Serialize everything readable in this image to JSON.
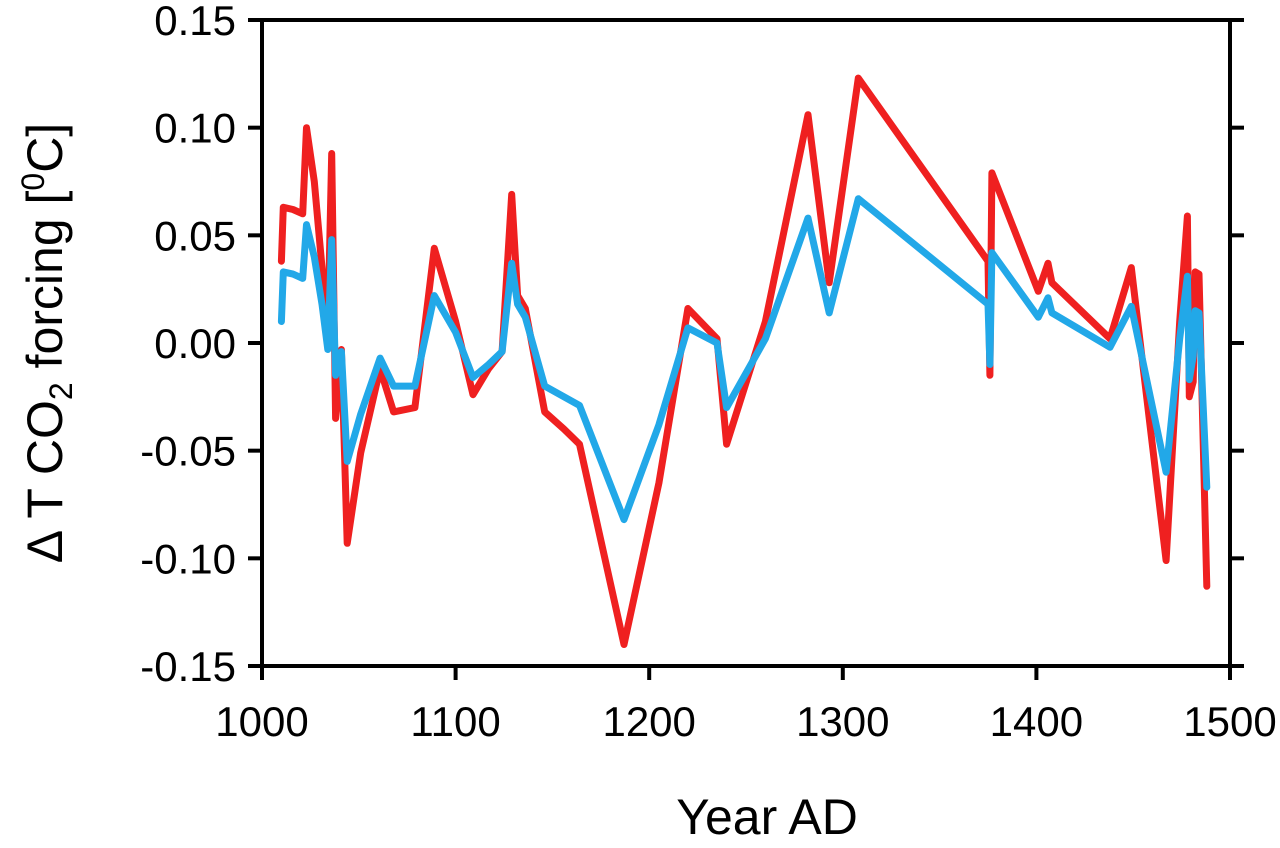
{
  "chart_data": {
    "type": "line",
    "xlabel": "Year AD",
    "ylabel_parts": {
      "pre": "Δ T CO",
      "sub": "2",
      "mid": " forcing [",
      "sup": "0",
      "post": "C]"
    },
    "xlim": [
      1000,
      1500
    ],
    "ylim": [
      -0.15,
      0.15
    ],
    "x_ticks": [
      "1000",
      "1100",
      "1200",
      "1300",
      "1400",
      "1500"
    ],
    "y_ticks": [
      "-0.15",
      "-0.10",
      "-0.05",
      "0.00",
      "0.05",
      "0.10",
      "0.15"
    ],
    "x_tick_values": [
      1000,
      1100,
      1200,
      1300,
      1400,
      1500
    ],
    "y_tick_values": [
      -0.15,
      -0.1,
      -0.05,
      0.0,
      0.05,
      0.1,
      0.15
    ],
    "grid": false,
    "series": [
      {
        "color": "#ef2020",
        "x": [
          1010,
          1011,
          1016,
          1021,
          1023,
          1027,
          1031,
          1034,
          1036,
          1038,
          1041,
          1044,
          1051,
          1061,
          1068,
          1079,
          1089,
          1100,
          1109,
          1117,
          1124,
          1129,
          1132,
          1136,
          1146,
          1156,
          1164,
          1187,
          1205,
          1220,
          1235,
          1240,
          1260,
          1282,
          1293,
          1308,
          1375,
          1376,
          1377,
          1401,
          1406,
          1408,
          1438,
          1449,
          1467,
          1474,
          1478,
          1479,
          1481,
          1482,
          1484,
          1488
        ],
        "y": [
          0.038,
          0.063,
          0.062,
          0.06,
          0.1,
          0.075,
          0.035,
          0.005,
          0.088,
          -0.035,
          -0.003,
          -0.093,
          -0.051,
          -0.012,
          -0.032,
          -0.03,
          0.044,
          0.01,
          -0.024,
          -0.012,
          -0.004,
          0.069,
          0.022,
          0.016,
          -0.032,
          -0.04,
          -0.047,
          -0.14,
          -0.065,
          0.016,
          0.002,
          -0.047,
          0.01,
          0.106,
          0.028,
          0.123,
          0.038,
          -0.015,
          0.079,
          0.024,
          0.037,
          0.028,
          0.002,
          0.035,
          -0.101,
          0.01,
          0.059,
          -0.025,
          -0.018,
          0.033,
          0.032,
          -0.113
        ]
      },
      {
        "color": "#22a8e8",
        "x": [
          1010,
          1011,
          1016,
          1021,
          1023,
          1027,
          1031,
          1034,
          1036,
          1038,
          1041,
          1044,
          1051,
          1061,
          1068,
          1079,
          1089,
          1100,
          1109,
          1117,
          1124,
          1129,
          1132,
          1136,
          1146,
          1156,
          1164,
          1187,
          1205,
          1220,
          1235,
          1240,
          1260,
          1282,
          1293,
          1308,
          1375,
          1376,
          1377,
          1401,
          1406,
          1408,
          1438,
          1449,
          1467,
          1474,
          1478,
          1479,
          1481,
          1482,
          1484,
          1488
        ],
        "y": [
          0.01,
          0.033,
          0.032,
          0.03,
          0.055,
          0.04,
          0.018,
          -0.003,
          0.048,
          -0.015,
          -0.004,
          -0.055,
          -0.033,
          -0.007,
          -0.02,
          -0.02,
          0.022,
          0.005,
          -0.016,
          -0.01,
          -0.004,
          0.037,
          0.018,
          0.012,
          -0.02,
          -0.025,
          -0.029,
          -0.082,
          -0.038,
          0.007,
          0.0,
          -0.03,
          0.002,
          0.058,
          0.014,
          0.067,
          0.018,
          -0.01,
          0.042,
          0.012,
          0.021,
          0.014,
          -0.002,
          0.017,
          -0.06,
          0.002,
          0.031,
          -0.017,
          -0.006,
          0.015,
          0.014,
          -0.067
        ]
      }
    ]
  }
}
